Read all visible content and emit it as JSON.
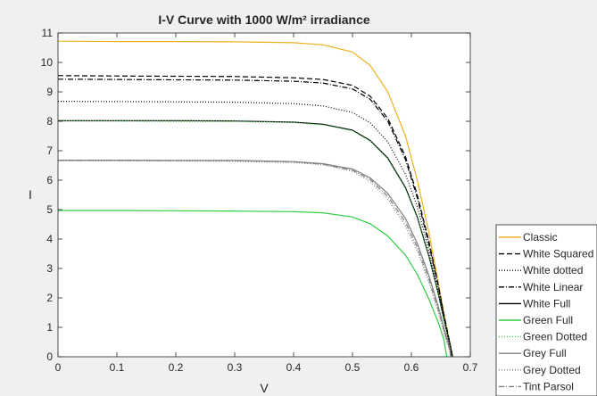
{
  "chart_data": {
    "type": "line",
    "title": "I-V Curve with 1000 W/m² irradiance",
    "xlabel": "V",
    "ylabel": "I",
    "xlim": [
      0,
      0.7
    ],
    "ylim": [
      0,
      11
    ],
    "xticks": [
      "0",
      "0.1",
      "0.2",
      "0.3",
      "0.4",
      "0.5",
      "0.6",
      "0.7"
    ],
    "yticks": [
      "0",
      "1",
      "2",
      "3",
      "4",
      "5",
      "6",
      "7",
      "8",
      "9",
      "10",
      "11"
    ],
    "grid": false,
    "legend_position": "outside-bottom-right",
    "series": [
      {
        "name": "Classic",
        "color": "#EDB120",
        "dash": "solid",
        "points": [
          [
            0,
            10.72
          ],
          [
            0.1,
            10.71
          ],
          [
            0.2,
            10.71
          ],
          [
            0.3,
            10.7
          ],
          [
            0.4,
            10.67
          ],
          [
            0.45,
            10.6
          ],
          [
            0.5,
            10.35
          ],
          [
            0.53,
            9.9
          ],
          [
            0.56,
            9.0
          ],
          [
            0.59,
            7.5
          ],
          [
            0.61,
            6.0
          ],
          [
            0.63,
            4.2
          ],
          [
            0.645,
            2.6
          ],
          [
            0.655,
            1.5
          ],
          [
            0.665,
            0.5
          ],
          [
            0.67,
            0
          ]
        ]
      },
      {
        "name": "White Squared",
        "color": "#000000",
        "dash": "dashed",
        "points": [
          [
            0,
            9.55
          ],
          [
            0.1,
            9.54
          ],
          [
            0.2,
            9.53
          ],
          [
            0.3,
            9.52
          ],
          [
            0.4,
            9.48
          ],
          [
            0.45,
            9.42
          ],
          [
            0.5,
            9.22
          ],
          [
            0.53,
            8.85
          ],
          [
            0.56,
            8.1
          ],
          [
            0.59,
            6.8
          ],
          [
            0.61,
            5.5
          ],
          [
            0.63,
            3.9
          ],
          [
            0.645,
            2.5
          ],
          [
            0.655,
            1.45
          ],
          [
            0.665,
            0.5
          ],
          [
            0.67,
            0
          ]
        ]
      },
      {
        "name": "White dotted",
        "color": "#000000",
        "dash": "dotted",
        "points": [
          [
            0,
            8.68
          ],
          [
            0.1,
            8.67
          ],
          [
            0.2,
            8.66
          ],
          [
            0.3,
            8.65
          ],
          [
            0.4,
            8.6
          ],
          [
            0.45,
            8.52
          ],
          [
            0.5,
            8.3
          ],
          [
            0.53,
            7.95
          ],
          [
            0.56,
            7.3
          ],
          [
            0.59,
            6.2
          ],
          [
            0.61,
            5.1
          ],
          [
            0.63,
            3.6
          ],
          [
            0.645,
            2.3
          ],
          [
            0.655,
            1.35
          ],
          [
            0.665,
            0.45
          ],
          [
            0.67,
            0
          ]
        ]
      },
      {
        "name": "White Linear",
        "color": "#000000",
        "dash": "dashdot",
        "points": [
          [
            0,
            9.43
          ],
          [
            0.1,
            9.42
          ],
          [
            0.2,
            9.41
          ],
          [
            0.3,
            9.4
          ],
          [
            0.4,
            9.36
          ],
          [
            0.45,
            9.3
          ],
          [
            0.5,
            9.1
          ],
          [
            0.53,
            8.75
          ],
          [
            0.56,
            8.0
          ],
          [
            0.59,
            6.7
          ],
          [
            0.61,
            5.4
          ],
          [
            0.63,
            3.8
          ],
          [
            0.645,
            2.45
          ],
          [
            0.655,
            1.4
          ],
          [
            0.665,
            0.48
          ],
          [
            0.67,
            0
          ]
        ]
      },
      {
        "name": "White Full",
        "color": "#000000",
        "dash": "solid",
        "points": [
          [
            0,
            8.02
          ],
          [
            0.1,
            8.02
          ],
          [
            0.2,
            8.02
          ],
          [
            0.3,
            8.01
          ],
          [
            0.4,
            7.97
          ],
          [
            0.45,
            7.9
          ],
          [
            0.5,
            7.7
          ],
          [
            0.53,
            7.35
          ],
          [
            0.56,
            6.75
          ],
          [
            0.59,
            5.75
          ],
          [
            0.61,
            4.75
          ],
          [
            0.63,
            3.4
          ],
          [
            0.645,
            2.2
          ],
          [
            0.655,
            1.3
          ],
          [
            0.665,
            0.42
          ],
          [
            0.668,
            0
          ]
        ]
      },
      {
        "name": "Green Full",
        "color": "#2ECC40",
        "dash": "solid",
        "points": [
          [
            0,
            4.97
          ],
          [
            0.1,
            4.97
          ],
          [
            0.2,
            4.96
          ],
          [
            0.3,
            4.95
          ],
          [
            0.4,
            4.93
          ],
          [
            0.45,
            4.89
          ],
          [
            0.5,
            4.75
          ],
          [
            0.53,
            4.52
          ],
          [
            0.56,
            4.1
          ],
          [
            0.59,
            3.45
          ],
          [
            0.61,
            2.8
          ],
          [
            0.63,
            1.95
          ],
          [
            0.645,
            1.2
          ],
          [
            0.655,
            0.6
          ],
          [
            0.66,
            0
          ]
        ]
      },
      {
        "name": "Green Dotted",
        "color": "#2ECC40",
        "dash": "dotted",
        "points": [
          [
            0,
            8.01
          ],
          [
            0.1,
            8.01
          ],
          [
            0.2,
            8.0
          ],
          [
            0.3,
            8.0
          ],
          [
            0.4,
            7.96
          ],
          [
            0.45,
            7.88
          ],
          [
            0.5,
            7.68
          ],
          [
            0.53,
            7.33
          ],
          [
            0.56,
            6.72
          ],
          [
            0.59,
            5.72
          ],
          [
            0.61,
            4.72
          ],
          [
            0.63,
            3.38
          ],
          [
            0.645,
            2.18
          ],
          [
            0.655,
            1.28
          ],
          [
            0.665,
            0.4
          ],
          [
            0.668,
            0
          ]
        ]
      },
      {
        "name": "Grey Full",
        "color": "#808080",
        "dash": "solid",
        "points": [
          [
            0,
            6.68
          ],
          [
            0.1,
            6.68
          ],
          [
            0.2,
            6.67
          ],
          [
            0.3,
            6.67
          ],
          [
            0.4,
            6.63
          ],
          [
            0.45,
            6.56
          ],
          [
            0.5,
            6.38
          ],
          [
            0.53,
            6.08
          ],
          [
            0.56,
            5.55
          ],
          [
            0.59,
            4.7
          ],
          [
            0.61,
            3.85
          ],
          [
            0.63,
            2.75
          ],
          [
            0.645,
            1.75
          ],
          [
            0.655,
            1.0
          ],
          [
            0.665,
            0.3
          ],
          [
            0.667,
            0
          ]
        ]
      },
      {
        "name": "Grey Dotted",
        "color": "#808080",
        "dash": "dotted",
        "points": [
          [
            0,
            6.66
          ],
          [
            0.1,
            6.66
          ],
          [
            0.2,
            6.65
          ],
          [
            0.3,
            6.64
          ],
          [
            0.4,
            6.6
          ],
          [
            0.45,
            6.52
          ],
          [
            0.5,
            6.3
          ],
          [
            0.53,
            5.95
          ],
          [
            0.56,
            5.35
          ],
          [
            0.59,
            4.45
          ],
          [
            0.61,
            3.6
          ],
          [
            0.63,
            2.5
          ],
          [
            0.645,
            1.55
          ],
          [
            0.655,
            0.85
          ],
          [
            0.665,
            0.2
          ],
          [
            0.666,
            0
          ]
        ]
      },
      {
        "name": "Tint Parsol",
        "color": "#808080",
        "dash": "dashdot",
        "points": [
          [
            0,
            6.67
          ],
          [
            0.1,
            6.67
          ],
          [
            0.2,
            6.66
          ],
          [
            0.3,
            6.66
          ],
          [
            0.4,
            6.62
          ],
          [
            0.45,
            6.54
          ],
          [
            0.5,
            6.34
          ],
          [
            0.53,
            6.02
          ],
          [
            0.56,
            5.45
          ],
          [
            0.59,
            4.57
          ],
          [
            0.61,
            3.72
          ],
          [
            0.63,
            2.62
          ],
          [
            0.645,
            1.65
          ],
          [
            0.655,
            0.92
          ],
          [
            0.665,
            0.25
          ],
          [
            0.667,
            0
          ]
        ]
      }
    ]
  }
}
